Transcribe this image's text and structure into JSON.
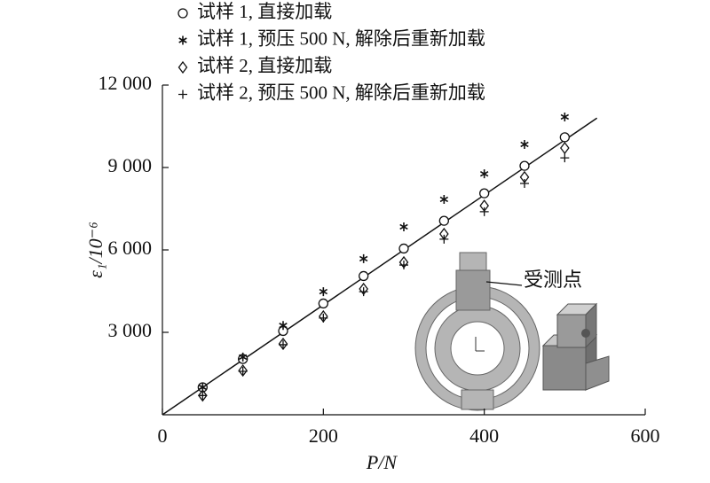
{
  "chart_data": {
    "type": "scatter",
    "x_label": "P/N",
    "y_label": "ε₁/10⁻⁶",
    "annotation": "受测点",
    "xlim": [
      0,
      600
    ],
    "xticks": [
      0,
      200,
      400,
      600
    ],
    "ylim": [
      0,
      12000
    ],
    "yticks": [
      {
        "value": 3000,
        "label": "3 000"
      },
      {
        "value": 6000,
        "label": "6 000"
      },
      {
        "value": 9000,
        "label": "9 000"
      },
      {
        "value": 12000,
        "label": "12 000"
      }
    ],
    "x": [
      50,
      100,
      150,
      200,
      250,
      300,
      350,
      400,
      450,
      500
    ],
    "series": [
      {
        "name": "试样 1, 直接加载",
        "marker": "circle",
        "color": "#111111",
        "values": [
          1000,
          2030,
          3050,
          4050,
          5050,
          6050,
          7060,
          8060,
          9060,
          10100
        ]
      },
      {
        "name": "试样 1, 预压 500 N, 解除后重新加载",
        "marker": "star",
        "color": "#111111",
        "values": [
          1000,
          2100,
          3250,
          4480,
          5680,
          6840,
          7840,
          8770,
          9840,
          10840
        ]
      },
      {
        "name": "试样 2, 直接加载",
        "marker": "diamond",
        "color": "#111111",
        "values": [
          700,
          1610,
          2580,
          3580,
          4580,
          5550,
          6580,
          7610,
          8650,
          9710
        ]
      },
      {
        "name": "试样 2, 预压 500 N, 解除后重新加载",
        "marker": "plus",
        "color": "#111111",
        "values": [
          700,
          1580,
          2550,
          3520,
          4480,
          5450,
          6390,
          7390,
          8420,
          9350
        ]
      }
    ],
    "fit_line": {
      "x": [
        0,
        540
      ],
      "y": [
        0,
        10800
      ]
    }
  }
}
